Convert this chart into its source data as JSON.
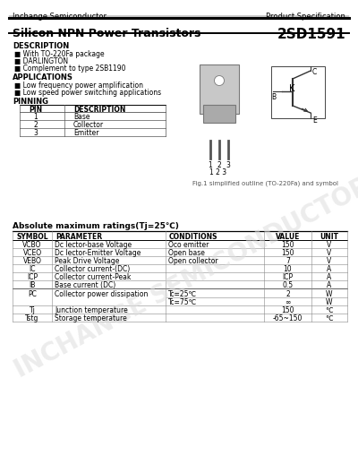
{
  "company": "Inchange Semiconductor",
  "product_spec": "Product Specification",
  "title": "Silicon NPN Power Transistors",
  "part_number": "2SD1591",
  "description_title": "DESCRIPTION",
  "description_items": [
    "■ With TO-220Fa package",
    "■ DARLINGTON",
    "■ Complement to type 2SB1190"
  ],
  "applications_title": "APPLICATIONS",
  "applications_items": [
    "■ Low frequency power amplification",
    "■ Low speed power switching applications"
  ],
  "pinning_title": "PINNING",
  "pin_headers": [
    "PIN",
    "DESCRIPTION"
  ],
  "pin_data": [
    [
      "1",
      "Base"
    ],
    [
      "2",
      "Collector"
    ],
    [
      "3",
      "Emitter"
    ]
  ],
  "fig_caption": "Fig.1 simplified outline (TO-220Fa) and symbol",
  "abs_max_title": "Absolute maximum ratings(Tj=25℃)",
  "abs_headers": [
    "SYMBOL",
    "PARAMETER",
    "CONDITIONS",
    "VALUE",
    "UNIT"
  ],
  "rows": [
    [
      "VCBO",
      "Dc lector-base Voltage",
      "Oco emitter",
      "150",
      "V"
    ],
    [
      "VCEO",
      "Dc lector-Emitter Voltage",
      "Open base",
      "150",
      "V"
    ],
    [
      "VEBO",
      "Peak Drive Voltage",
      "Open collector",
      "7",
      "V"
    ],
    [
      "IC",
      "Collector current-(DC)",
      "",
      "10",
      "A"
    ],
    [
      "ICP",
      "Collector current-Peak",
      "",
      "ICP",
      "A"
    ],
    [
      "IB",
      "Base current (DC)",
      "",
      "0.5",
      "A"
    ],
    [
      "PC",
      "Collector power dissipation",
      "Tc=25℃",
      "2",
      "W"
    ],
    [
      "",
      "",
      "Tc=75℃",
      "∞",
      "W"
    ],
    [
      "Tj",
      "Junction temperature",
      "",
      "150",
      "℃"
    ],
    [
      "Tstg",
      "Storage temperature",
      "",
      "-65~150",
      "℃"
    ]
  ],
  "watermark": "INCHANGE SEMICONDUCTOR",
  "bg_color": "#ffffff"
}
